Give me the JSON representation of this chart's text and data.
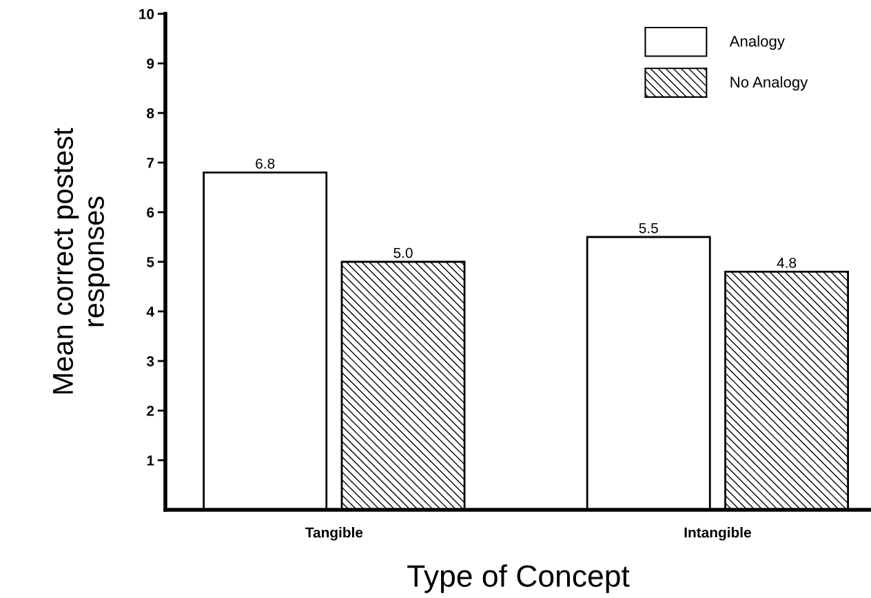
{
  "chart_data": {
    "type": "bar",
    "xlabel": "Type of Concept",
    "ylabel": "Mean correct postest\nresponses",
    "categories": [
      "Tangible",
      "Intangible"
    ],
    "series": [
      {
        "name": "Analogy",
        "color": "#ffffff",
        "values": [
          6.8,
          5.5
        ],
        "value_labels": [
          "6.8",
          "5.5"
        ]
      },
      {
        "name": "No Analogy",
        "color": "#000000",
        "values": [
          5.0,
          4.8
        ],
        "value_labels": [
          "5.0",
          "4.8"
        ]
      }
    ],
    "ylim": [
      0,
      10
    ],
    "yticks": [
      1,
      2,
      3,
      4,
      5,
      6,
      7,
      8,
      9,
      10
    ],
    "grid": false,
    "legend": "top right"
  }
}
